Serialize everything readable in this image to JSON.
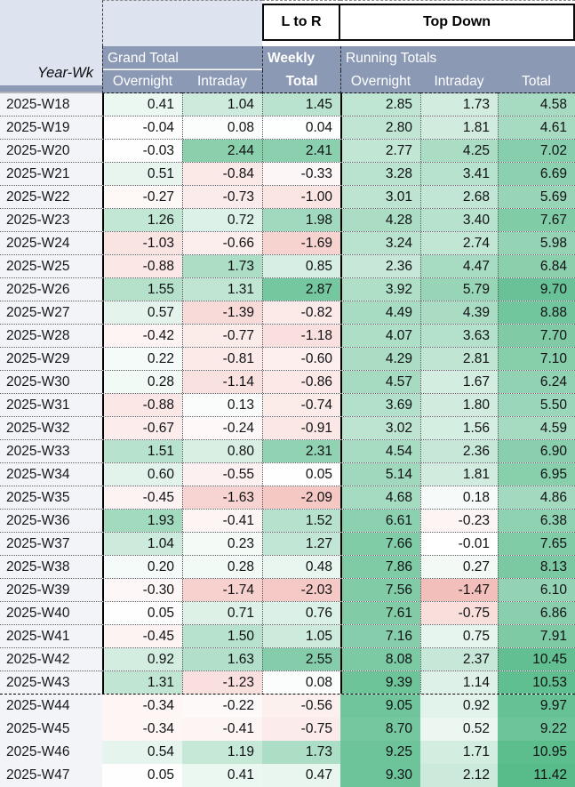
{
  "sheet": {
    "corner_label": "Year-Wk",
    "flow_labels": {
      "l_to_r": "L to R",
      "top_down": "Top Down"
    },
    "groups": {
      "grand_total": "Grand Total",
      "weekly": "Weekly",
      "running_totals": "Running Totals"
    },
    "subheaders": [
      "Overnight",
      "Intraday",
      "Total",
      "Overnight",
      "Intraday",
      "Total"
    ],
    "colors": {
      "header_band": "#8b99b5",
      "corner_bg": "#dde3ef",
      "week_col_bg": "#f3f4f8",
      "positive_scale_end": "#57bb8a",
      "negative_scale_end": "#e67c73"
    },
    "heatmap": {
      "weekly_green_max": 3.5,
      "weekly_red_max": 5.0,
      "running_green_max": 11.42,
      "running_green_gamma": 0.7,
      "running_red_max": 3.0
    },
    "bordered_row_count": 26,
    "rows": [
      {
        "week": "2025-W18",
        "values": [
          0.41,
          1.04,
          1.45,
          2.85,
          1.73,
          4.58
        ]
      },
      {
        "week": "2025-W19",
        "values": [
          -0.04,
          0.08,
          0.04,
          2.8,
          1.81,
          4.61
        ]
      },
      {
        "week": "2025-W20",
        "values": [
          -0.03,
          2.44,
          2.41,
          2.77,
          4.25,
          7.02
        ]
      },
      {
        "week": "2025-W21",
        "values": [
          0.51,
          -0.84,
          -0.33,
          3.28,
          3.41,
          6.69
        ]
      },
      {
        "week": "2025-W22",
        "values": [
          -0.27,
          -0.73,
          -1.0,
          3.01,
          2.68,
          5.69
        ]
      },
      {
        "week": "2025-W23",
        "values": [
          1.26,
          0.72,
          1.98,
          4.28,
          3.4,
          7.67
        ]
      },
      {
        "week": "2025-W24",
        "values": [
          -1.03,
          -0.66,
          -1.69,
          3.24,
          2.74,
          5.98
        ]
      },
      {
        "week": "2025-W25",
        "values": [
          -0.88,
          1.73,
          0.85,
          2.36,
          4.47,
          6.84
        ]
      },
      {
        "week": "2025-W26",
        "values": [
          1.55,
          1.31,
          2.87,
          3.92,
          5.79,
          9.7
        ]
      },
      {
        "week": "2025-W27",
        "values": [
          0.57,
          -1.39,
          -0.82,
          4.49,
          4.39,
          8.88
        ]
      },
      {
        "week": "2025-W28",
        "values": [
          -0.42,
          -0.77,
          -1.18,
          4.07,
          3.63,
          7.7
        ]
      },
      {
        "week": "2025-W29",
        "values": [
          0.22,
          -0.81,
          -0.6,
          4.29,
          2.81,
          7.1
        ]
      },
      {
        "week": "2025-W30",
        "values": [
          0.28,
          -1.14,
          -0.86,
          4.57,
          1.67,
          6.24
        ]
      },
      {
        "week": "2025-W31",
        "values": [
          -0.88,
          0.13,
          -0.74,
          3.69,
          1.8,
          5.5
        ]
      },
      {
        "week": "2025-W32",
        "values": [
          -0.67,
          -0.24,
          -0.91,
          3.02,
          1.56,
          4.59
        ]
      },
      {
        "week": "2025-W33",
        "values": [
          1.51,
          0.8,
          2.31,
          4.54,
          2.36,
          6.9
        ]
      },
      {
        "week": "2025-W34",
        "values": [
          0.6,
          -0.55,
          0.05,
          5.14,
          1.81,
          6.95
        ]
      },
      {
        "week": "2025-W35",
        "values": [
          -0.45,
          -1.63,
          -2.09,
          4.68,
          0.18,
          4.86
        ]
      },
      {
        "week": "2025-W36",
        "values": [
          1.93,
          -0.41,
          1.52,
          6.61,
          -0.23,
          6.38
        ]
      },
      {
        "week": "2025-W37",
        "values": [
          1.04,
          0.23,
          1.27,
          7.66,
          -0.01,
          7.65
        ]
      },
      {
        "week": "2025-W38",
        "values": [
          0.2,
          0.28,
          0.48,
          7.86,
          0.27,
          8.13
        ]
      },
      {
        "week": "2025-W39",
        "values": [
          -0.3,
          -1.74,
          -2.03,
          7.56,
          -1.47,
          6.1
        ]
      },
      {
        "week": "2025-W40",
        "values": [
          0.05,
          0.71,
          0.76,
          7.61,
          -0.75,
          6.86
        ]
      },
      {
        "week": "2025-W41",
        "values": [
          -0.45,
          1.5,
          1.05,
          7.16,
          0.75,
          7.91
        ]
      },
      {
        "week": "2025-W42",
        "values": [
          0.92,
          1.63,
          2.55,
          8.08,
          2.37,
          10.45
        ]
      },
      {
        "week": "2025-W43",
        "values": [
          1.31,
          -1.23,
          0.08,
          9.39,
          1.14,
          10.53
        ]
      },
      {
        "week": "2025-W44",
        "values": [
          -0.34,
          -0.22,
          -0.56,
          9.05,
          0.92,
          9.97
        ]
      },
      {
        "week": "2025-W45",
        "values": [
          -0.34,
          -0.41,
          -0.75,
          8.7,
          0.52,
          9.22
        ]
      },
      {
        "week": "2025-W46",
        "values": [
          0.54,
          1.19,
          1.73,
          9.25,
          1.71,
          10.95
        ]
      },
      {
        "week": "2025-W47",
        "values": [
          0.05,
          0.41,
          0.47,
          9.3,
          2.12,
          11.42
        ]
      }
    ]
  }
}
